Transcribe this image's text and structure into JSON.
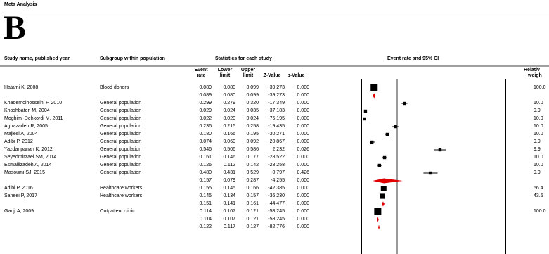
{
  "page": {
    "running_head": "Meta Analysis",
    "figure_letter": "B"
  },
  "headers": {
    "study": "Study name, published year",
    "subgroup": "Subgroup within population",
    "stats": "Statistics for each study",
    "plot": "Event rate and 95% CI",
    "col_event_1": "Event",
    "col_event_2": "rate",
    "col_lower_1": "Lower",
    "col_lower_2": "limit",
    "col_upper_1": "Upper",
    "col_upper_2": "limit",
    "col_z": "Z-Value",
    "col_p": "p-Value",
    "col_weight_1": "Relativ",
    "col_weight_2": "weigh"
  },
  "chart_data": {
    "type": "forest",
    "rows": [
      {
        "kind": "study",
        "study": "Hatami K, 2008",
        "subgroup": "Blood donors",
        "rate": "0.089",
        "lower": "0.080",
        "upper": "0.099",
        "z": "-39.273",
        "p": "0.000",
        "weight": "100.0",
        "v": 0.089,
        "lo": 0.08,
        "hi": 0.099,
        "size": 5
      },
      {
        "kind": "summary",
        "rate": "0.089",
        "lower": "0.080",
        "upper": "0.099",
        "z": "-39.273",
        "p": "0.000",
        "v": 0.089,
        "lo": 0.08,
        "hi": 0.099
      },
      {
        "kind": "study",
        "study": "Khademolhosseini F, 2010",
        "subgroup": "General population",
        "rate": "0.299",
        "lower": "0.279",
        "upper": "0.320",
        "z": "-17.349",
        "p": "0.000",
        "weight": "10.0",
        "v": 0.299,
        "lo": 0.279,
        "hi": 0.32,
        "size": 2.2
      },
      {
        "kind": "study",
        "study": "Khoshbaten M, 2004",
        "subgroup": "General population",
        "rate": "0.029",
        "lower": "0.024",
        "upper": "0.035",
        "z": "-37.183",
        "p": "0.000",
        "weight": "9.9",
        "v": 0.029,
        "lo": 0.024,
        "hi": 0.035,
        "size": 2.2
      },
      {
        "kind": "study",
        "study": "Moghimi-Dehkordi M, 2011",
        "subgroup": "General population",
        "rate": "0.022",
        "lower": "0.020",
        "upper": "0.024",
        "z": "-75.195",
        "p": "0.000",
        "weight": "10.0",
        "v": 0.022,
        "lo": 0.02,
        "hi": 0.024,
        "size": 2.2
      },
      {
        "kind": "study",
        "study": "Aghazadeh R, 2005",
        "subgroup": "General population",
        "rate": "0.236",
        "lower": "0.215",
        "upper": "0.258",
        "z": "-19.435",
        "p": "0.000",
        "weight": "10.0",
        "v": 0.236,
        "lo": 0.215,
        "hi": 0.258,
        "size": 2.2
      },
      {
        "kind": "study",
        "study": "Majlesi A, 2004",
        "subgroup": "General population",
        "rate": "0.180",
        "lower": "0.166",
        "upper": "0.195",
        "z": "-30.271",
        "p": "0.000",
        "weight": "10.0",
        "v": 0.18,
        "lo": 0.166,
        "hi": 0.195,
        "size": 2.2
      },
      {
        "kind": "study",
        "study": "Adibi P, 2012",
        "subgroup": "General population",
        "rate": "0.074",
        "lower": "0.060",
        "upper": "0.092",
        "z": "-20.867",
        "p": "0.000",
        "weight": "9.9",
        "v": 0.074,
        "lo": 0.06,
        "hi": 0.092,
        "size": 2.2
      },
      {
        "kind": "study",
        "study": "Yazdanpanah K, 2012",
        "subgroup": "General population",
        "rate": "0.546",
        "lower": "0.506",
        "upper": "0.586",
        "z": "2.232",
        "p": "0.026",
        "weight": "9.9",
        "v": 0.546,
        "lo": 0.506,
        "hi": 0.586,
        "size": 2.2
      },
      {
        "kind": "study",
        "study": "Seyedmirzaei SM, 2014",
        "subgroup": "General population",
        "rate": "0.161",
        "lower": "0.146",
        "upper": "0.177",
        "z": "-28.522",
        "p": "0.000",
        "weight": "10.0",
        "v": 0.161,
        "lo": 0.146,
        "hi": 0.177,
        "size": 2.2
      },
      {
        "kind": "study",
        "study": "Esmaillzadeh A, 2014",
        "subgroup": "General population",
        "rate": "0.126",
        "lower": "0.112",
        "upper": "0.142",
        "z": "-28.258",
        "p": "0.000",
        "weight": "10.0",
        "v": 0.126,
        "lo": 0.112,
        "hi": 0.142,
        "size": 2.2
      },
      {
        "kind": "study",
        "study": "Masoumi SJ, 2015",
        "subgroup": "General population",
        "rate": "0.480",
        "lower": "0.431",
        "upper": "0.529",
        "z": "-0.797",
        "p": "0.426",
        "weight": "9.9",
        "v": 0.48,
        "lo": 0.431,
        "hi": 0.529,
        "size": 2.2
      },
      {
        "kind": "summary",
        "rate": "0.157",
        "lower": "0.079",
        "upper": "0.287",
        "z": "-4.255",
        "p": "0.000",
        "v": 0.157,
        "lo": 0.079,
        "hi": 0.287
      },
      {
        "kind": "study",
        "study": "Adibi P, 2016",
        "subgroup": "Healthcare workers",
        "rate": "0.155",
        "lower": "0.145",
        "upper": "0.166",
        "z": "-42.385",
        "p": "0.000",
        "weight": "56.4",
        "v": 0.155,
        "lo": 0.145,
        "hi": 0.166,
        "size": 4
      },
      {
        "kind": "study",
        "study": "Saneei P, 2017",
        "subgroup": "Healthcare workers",
        "rate": "0.145",
        "lower": "0.134",
        "upper": "0.157",
        "z": "-36.230",
        "p": "0.000",
        "weight": "43.5",
        "v": 0.145,
        "lo": 0.134,
        "hi": 0.157,
        "size": 3.6
      },
      {
        "kind": "summary",
        "rate": "0.151",
        "lower": "0.141",
        "upper": "0.161",
        "z": "-44.477",
        "p": "0.000",
        "v": 0.151,
        "lo": 0.141,
        "hi": 0.161
      },
      {
        "kind": "study",
        "study": "Ganji A, 2009",
        "subgroup": "Outpatient clinic",
        "rate": "0.114",
        "lower": "0.107",
        "upper": "0.121",
        "z": "-58.245",
        "p": "0.000",
        "weight": "100.0",
        "v": 0.114,
        "lo": 0.107,
        "hi": 0.121,
        "size": 5
      },
      {
        "kind": "summary",
        "rate": "0.114",
        "lower": "0.107",
        "upper": "0.121",
        "z": "-58.245",
        "p": "0.000",
        "v": 0.114,
        "lo": 0.107,
        "hi": 0.121
      },
      {
        "kind": "summary",
        "rate": "0.122",
        "lower": "0.117",
        "upper": "0.127",
        "z": "-82.776",
        "p": "0.000",
        "v": 0.122,
        "lo": 0.117,
        "hi": 0.127
      }
    ],
    "xlim": [
      0,
      1
    ],
    "colors": {
      "marker": "#000000",
      "diamond": "#e00000",
      "axis": "#000000"
    }
  }
}
